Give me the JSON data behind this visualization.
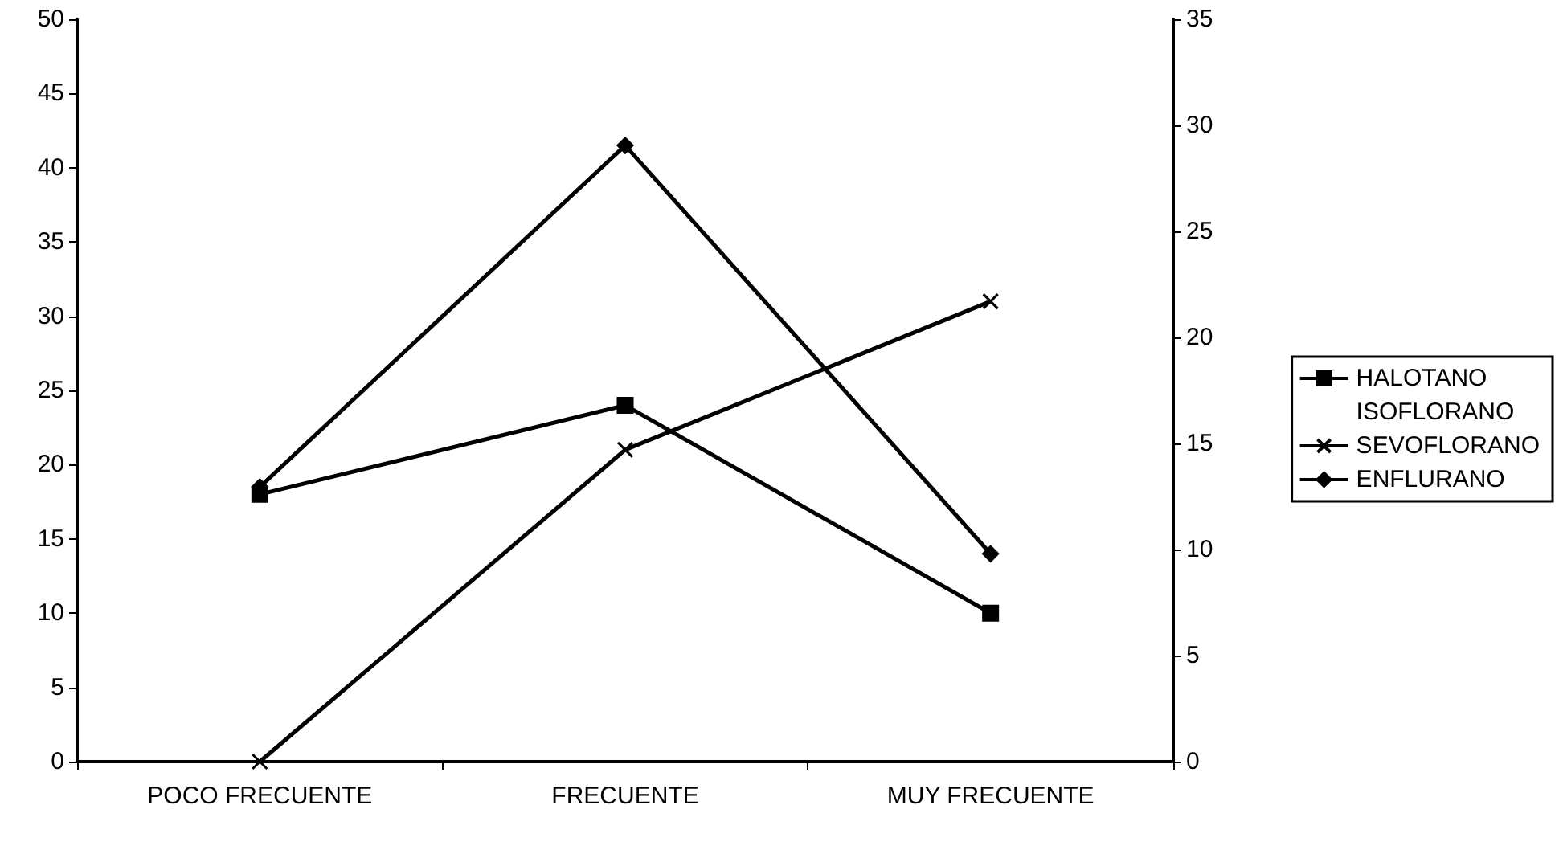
{
  "chart_data": {
    "type": "line",
    "categories": [
      "POCO FRECUENTE",
      "FRECUENTE",
      "MUY FRECUENTE"
    ],
    "series": [
      {
        "name": "HALOTANO",
        "color": "#000000",
        "marker": "square",
        "values": [
          18,
          24,
          10
        ]
      },
      {
        "name": "ISOFLORANO",
        "values": [
          null,
          null,
          null
        ]
      },
      {
        "name": "SEVOFLORANO",
        "color": "#000000",
        "marker": "cross",
        "values": [
          0,
          21,
          31
        ]
      },
      {
        "name": "ENFLURANO",
        "color": "#000000",
        "marker": "diamond",
        "values": [
          18.5,
          41.5,
          14
        ]
      }
    ],
    "ylim": [
      0,
      50
    ],
    "yticks": [
      0,
      5,
      10,
      15,
      20,
      25,
      30,
      35,
      40,
      45,
      50
    ],
    "y2lim": [
      0,
      35
    ],
    "y2ticks": [
      0,
      5,
      10,
      15,
      20,
      25,
      30,
      35
    ],
    "grid": false,
    "legend": "right",
    "line_style": "solid"
  }
}
